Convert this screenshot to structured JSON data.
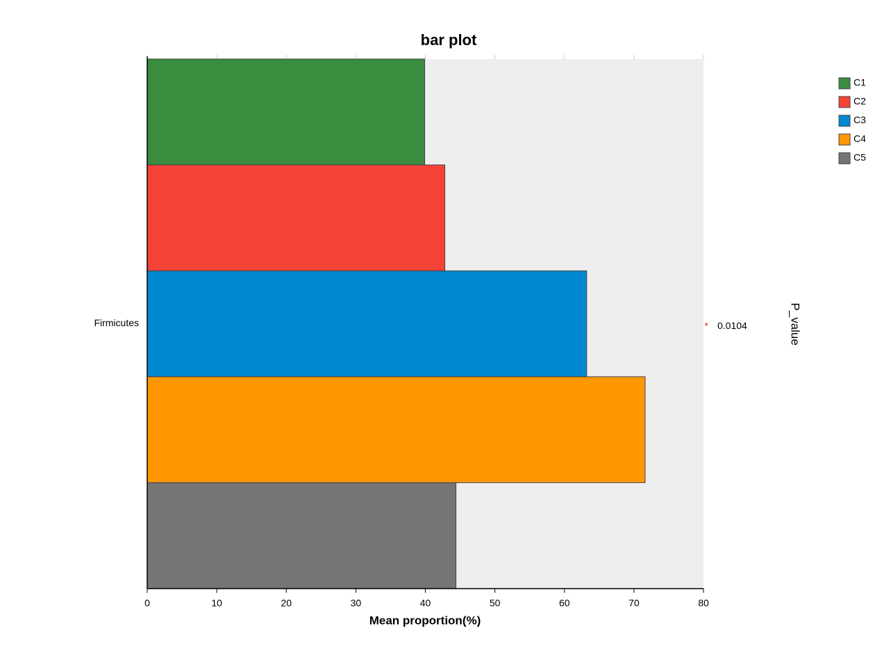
{
  "chart_data": {
    "type": "bar",
    "orientation": "horizontal",
    "title": "bar plot",
    "categories": [
      "Firmicutes"
    ],
    "series": [
      {
        "name": "C1",
        "color": "#3a8c3f",
        "values": [
          39.9
        ]
      },
      {
        "name": "C2",
        "color": "#f44336",
        "values": [
          42.8
        ]
      },
      {
        "name": "C3",
        "color": "#0288d1",
        "values": [
          63.2
        ]
      },
      {
        "name": "C4",
        "color": "#ff9800",
        "values": [
          71.6
        ]
      },
      {
        "name": "C5",
        "color": "#757575",
        "values": [
          44.4
        ]
      }
    ],
    "xlabel": "Mean proportion(%)",
    "xlim": [
      0,
      80
    ],
    "xticks": [
      0,
      10,
      20,
      30,
      40,
      50,
      60,
      70,
      80
    ],
    "y2label": "P_value",
    "significance": [
      "*"
    ],
    "p_values": [
      0.0104
    ],
    "background": "#ededed",
    "legend_position": "top-right"
  }
}
